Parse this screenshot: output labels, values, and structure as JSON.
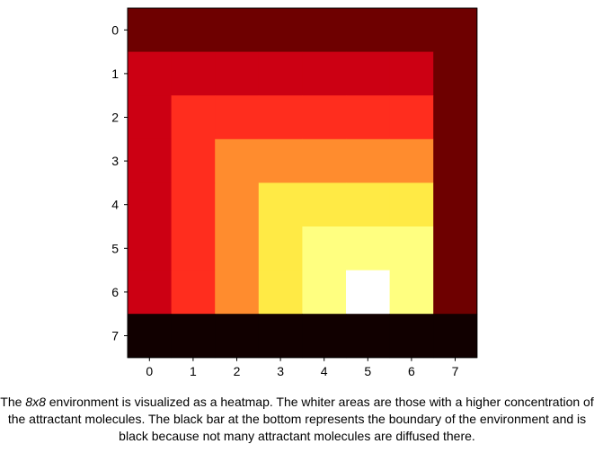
{
  "chart_data": {
    "type": "heatmap",
    "rows": 8,
    "cols": 8,
    "colormap": "hot",
    "values": [
      [
        1,
        1,
        1,
        1,
        1,
        1,
        1,
        1
      ],
      [
        2,
        2,
        2,
        2,
        2,
        2,
        2,
        1
      ],
      [
        2,
        3,
        3,
        3,
        3,
        3,
        3,
        1
      ],
      [
        2,
        3,
        4,
        4,
        4,
        4,
        4,
        1
      ],
      [
        2,
        3,
        4,
        5,
        5,
        5,
        5,
        1
      ],
      [
        2,
        3,
        4,
        5,
        6,
        6,
        6,
        1
      ],
      [
        2,
        3,
        4,
        5,
        6,
        7,
        6,
        1
      ],
      [
        0,
        0,
        0,
        0,
        0,
        0,
        0,
        0
      ]
    ],
    "level_colors": [
      "#110000",
      "#6e0000",
      "#cc0013",
      "#ff2d1e",
      "#ff8c2e",
      "#ffea45",
      "#ffff80",
      "#ffffff"
    ],
    "x_tick_labels": [
      "0",
      "1",
      "2",
      "3",
      "4",
      "5",
      "6",
      "7"
    ],
    "y_tick_labels": [
      "0",
      "1",
      "2",
      "3",
      "4",
      "5",
      "6",
      "7"
    ],
    "title": "",
    "xlabel": "",
    "ylabel": "",
    "grid": false,
    "legend": "none"
  },
  "caption": {
    "part1": "The ",
    "emph": "8x8",
    "part2": " environment is visualized as a heatmap. The whiter areas are those with a higher concentration of the attractant molecules. The black bar at the bottom represents the boundary of the environment and is black because not many attractant molecules are diffused there."
  }
}
